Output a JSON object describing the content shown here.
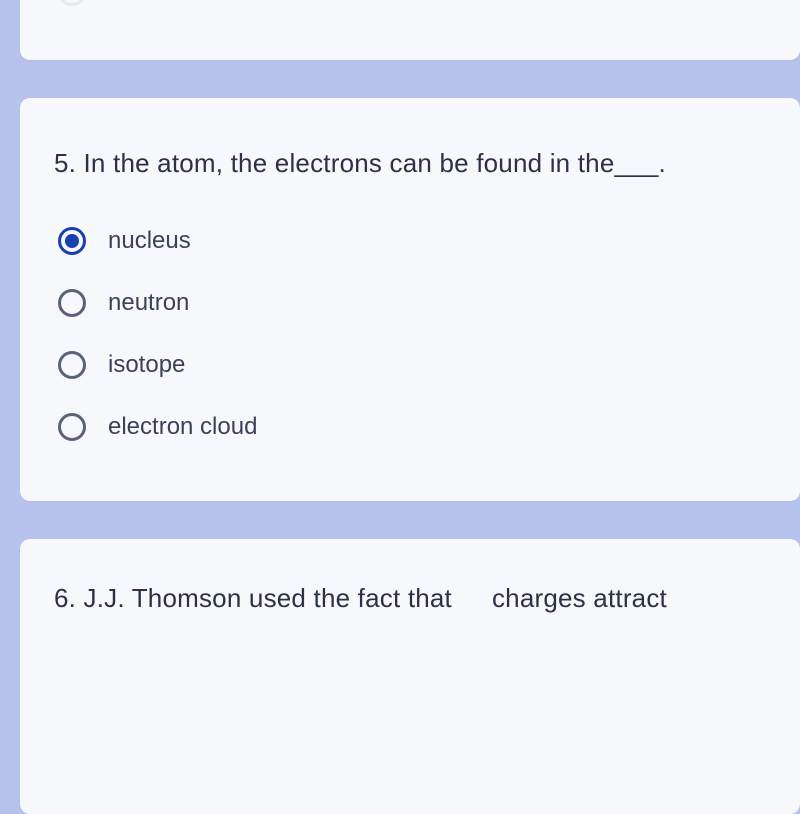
{
  "background_color": "#b8c3ed",
  "card_bg": "#f7f8fb",
  "text_color": "#2b3246",
  "radio_border": "#5a6278",
  "radio_selected": "#1a3fb0",
  "q5": {
    "prompt": "5. In the atom, the electrons can be found in the___.",
    "selected_index": 0,
    "options": [
      {
        "label": "nucleus"
      },
      {
        "label": "neutron"
      },
      {
        "label": "isotope"
      },
      {
        "label": "electron cloud"
      }
    ]
  },
  "q6": {
    "prompt_a": "6. J.J. Thomson used the fact that",
    "prompt_b": "charges attract"
  }
}
